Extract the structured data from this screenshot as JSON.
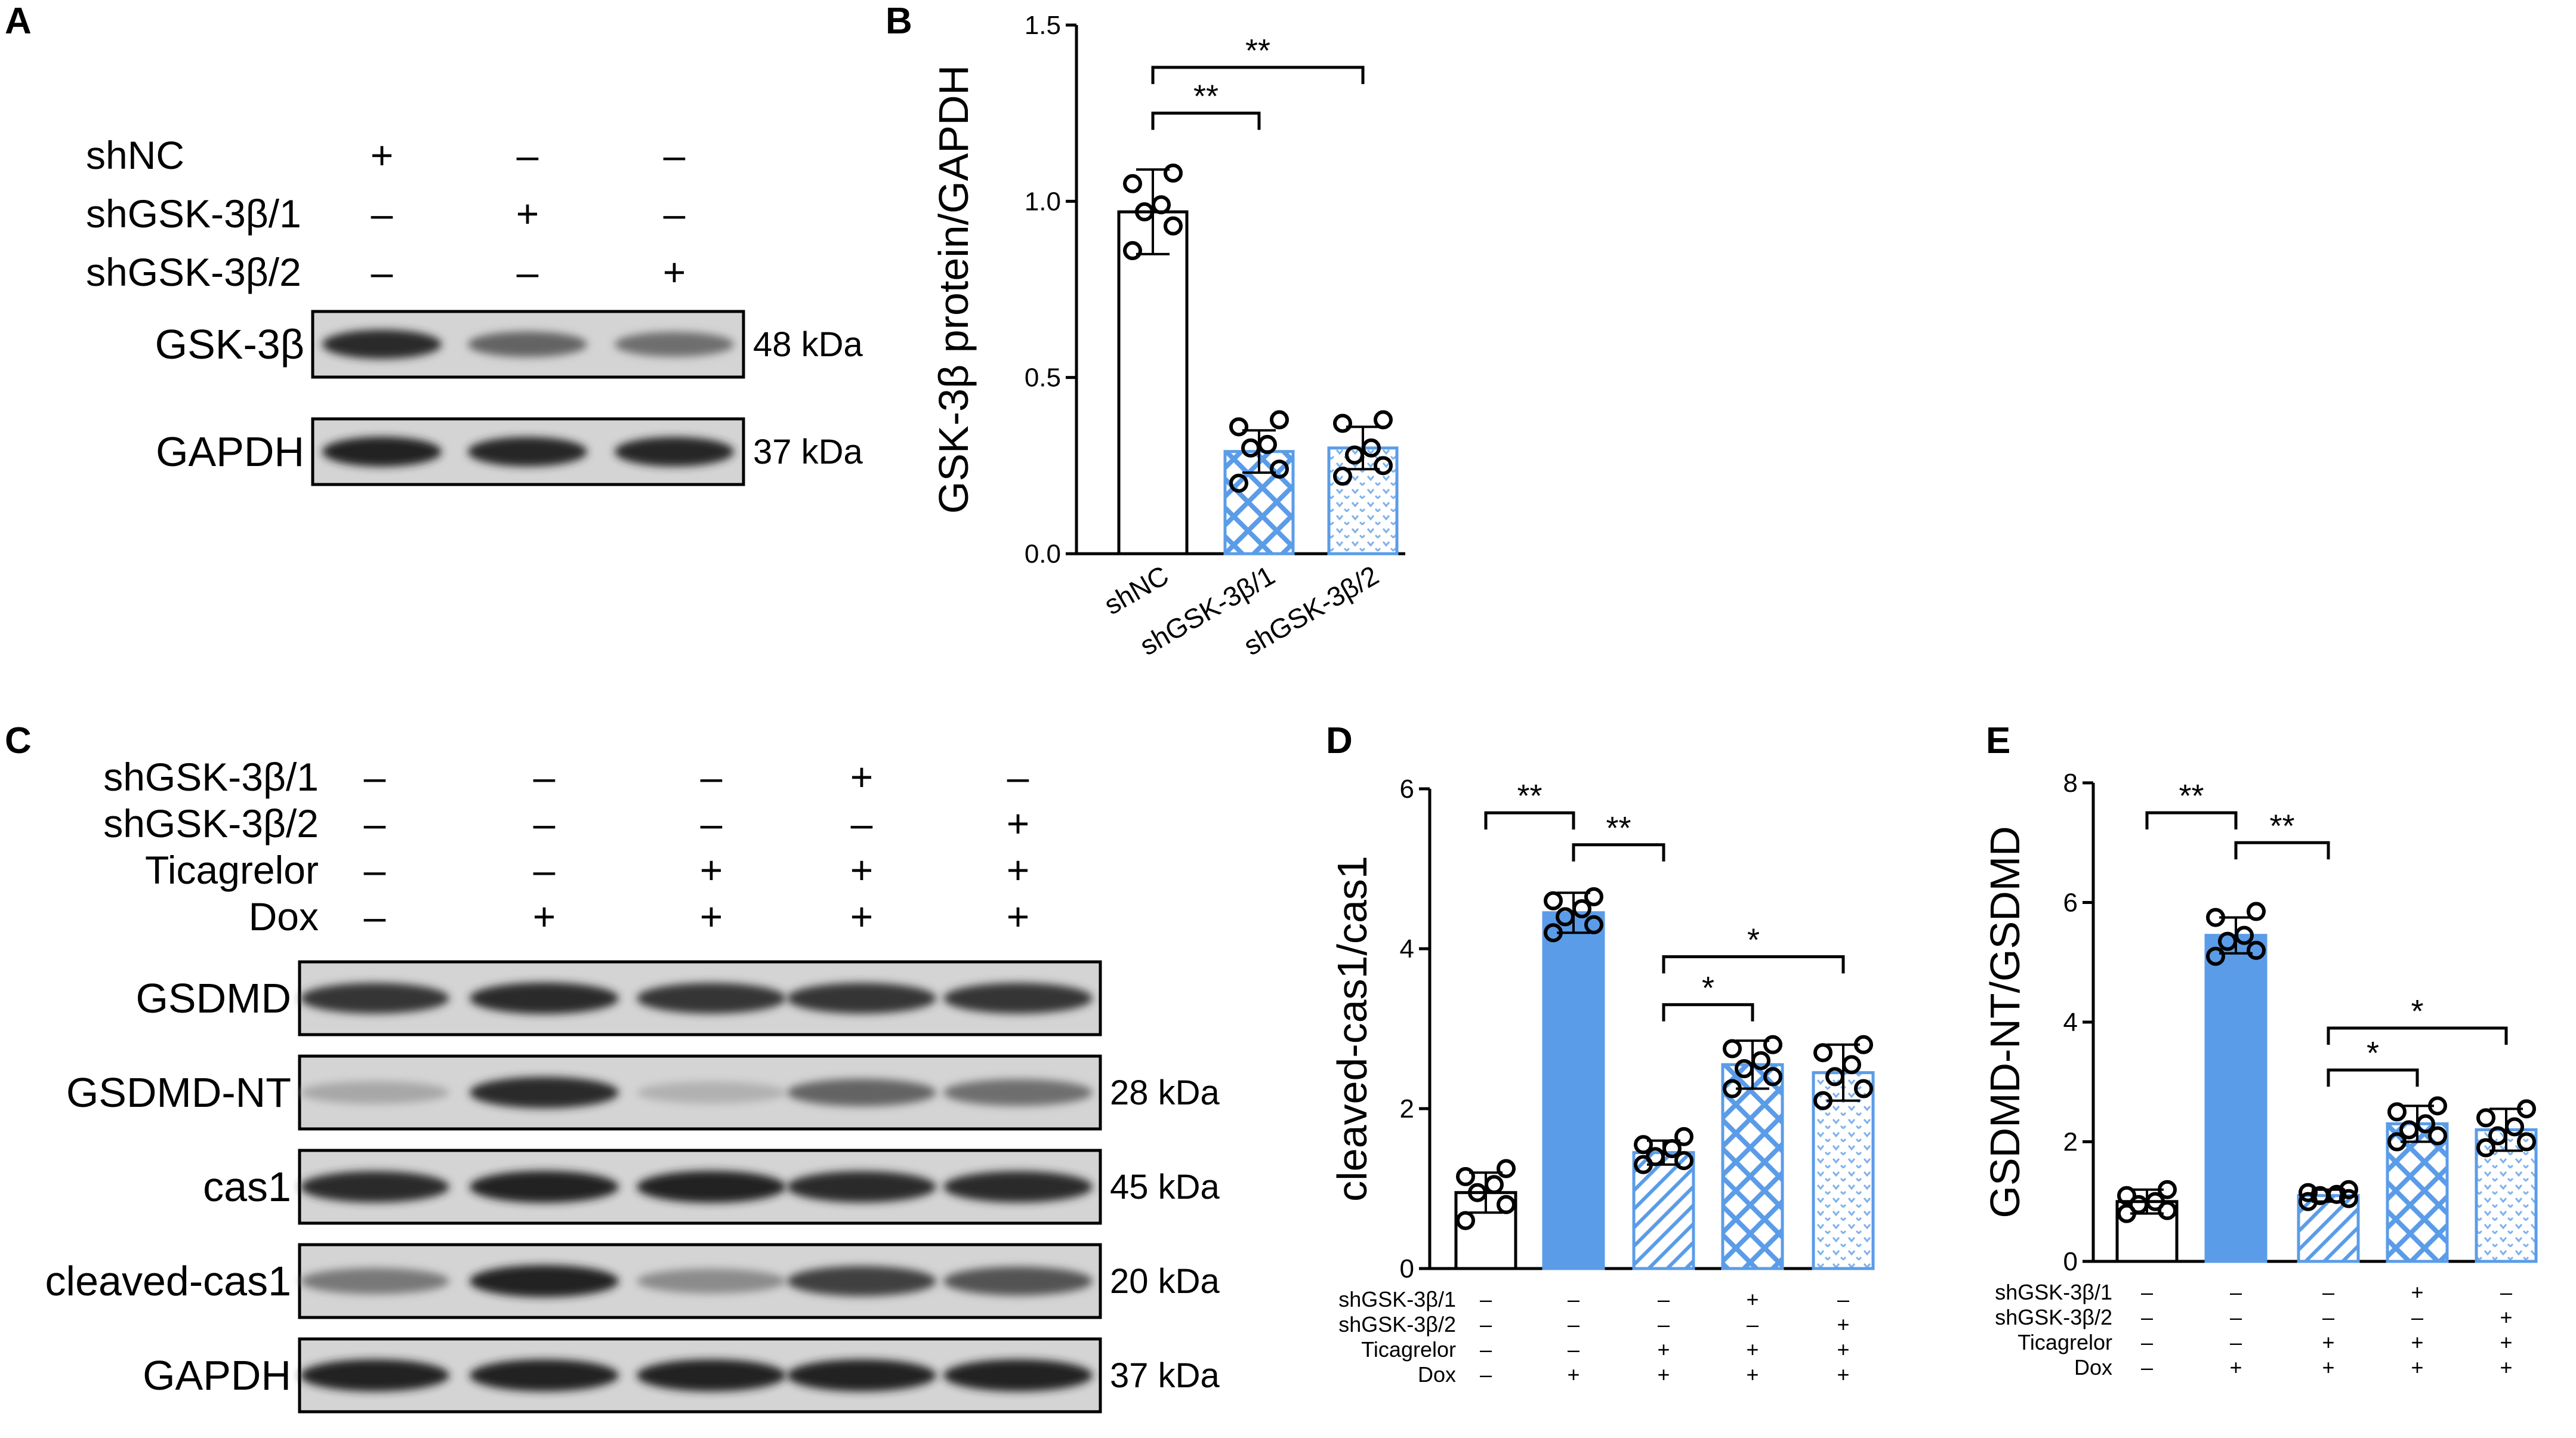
{
  "panels": [
    {
      "id": "panel-A",
      "letter": "A"
    },
    {
      "id": "panel-B",
      "letter": "B"
    },
    {
      "id": "panel-C",
      "letter": "C"
    },
    {
      "id": "panel-D",
      "letter": "D"
    },
    {
      "id": "panel-E",
      "letter": "E"
    }
  ],
  "blot_A": {
    "conditions": [
      {
        "label": "shNC",
        "signs": [
          "+",
          "–",
          "–"
        ]
      },
      {
        "label": "shGSK-3β/1",
        "signs": [
          "–",
          "+",
          "–"
        ]
      },
      {
        "label": "shGSK-3β/2",
        "signs": [
          "–",
          "–",
          "+"
        ]
      }
    ],
    "bands": [
      {
        "protein": "GSK-3β",
        "kda": "48 kDa",
        "intensity": [
          0.85,
          0.55,
          0.5
        ]
      },
      {
        "protein": "GAPDH",
        "kda": "37 kDa",
        "intensity": [
          0.9,
          0.88,
          0.88
        ]
      }
    ]
  },
  "blot_C": {
    "conditions": [
      {
        "label": "shGSK-3β/1",
        "signs": [
          "–",
          "–",
          "–",
          "+",
          "–"
        ]
      },
      {
        "label": "shGSK-3β/2",
        "signs": [
          "–",
          "–",
          "–",
          "–",
          "+"
        ]
      },
      {
        "label": "Ticagrelor",
        "signs": [
          "–",
          "–",
          "+",
          "+",
          "+"
        ]
      },
      {
        "label": "Dox",
        "signs": [
          "–",
          "+",
          "+",
          "+",
          "+"
        ]
      }
    ],
    "bands": [
      {
        "protein": "GSDMD",
        "kda": "",
        "intensity": [
          0.8,
          0.85,
          0.8,
          0.8,
          0.8
        ]
      },
      {
        "protein": "GSDMD-NT",
        "kda": "28 kDa",
        "intensity": [
          0.2,
          0.85,
          0.15,
          0.55,
          0.5
        ]
      },
      {
        "protein": "cas1",
        "kda": "45 kDa",
        "intensity": [
          0.85,
          0.9,
          0.9,
          0.85,
          0.85
        ]
      },
      {
        "protein": "cleaved-cas1",
        "kda": "20 kDa",
        "intensity": [
          0.45,
          0.9,
          0.35,
          0.75,
          0.65
        ]
      },
      {
        "protein": "GAPDH",
        "kda": "37 kDa",
        "intensity": [
          0.9,
          0.9,
          0.9,
          0.9,
          0.9
        ]
      }
    ]
  },
  "colors": {
    "bar_blue": "#5b9ce8",
    "light_blue": "#a9c9ef",
    "pattern_blue": "#5b9ce8",
    "black": "#000000"
  },
  "chart_data": [
    {
      "type": "bar",
      "panel": "B",
      "categories": [
        "shNC",
        "shGSK-3β/1",
        "shGSK-3β/2"
      ],
      "values": [
        0.97,
        0.29,
        0.3
      ],
      "errors": [
        0.12,
        0.06,
        0.06
      ],
      "points": [
        [
          0.86,
          0.93,
          0.97,
          0.99,
          1.05,
          1.08
        ],
        [
          0.2,
          0.24,
          0.3,
          0.31,
          0.36,
          0.38
        ],
        [
          0.22,
          0.25,
          0.28,
          0.3,
          0.37,
          0.38
        ]
      ],
      "fills": [
        "white",
        "crosshatch",
        "dots"
      ],
      "ylabel": "GSK-3β protein/GAPDH",
      "ylim": [
        0,
        1.5
      ],
      "yticks": [
        "0.0",
        "0.5",
        "1.0",
        "1.5"
      ],
      "brackets": [
        {
          "from": 0,
          "to": 1,
          "level": 1.25,
          "label": "**"
        },
        {
          "from": 0,
          "to": 2,
          "level": 1.38,
          "label": "**"
        }
      ]
    },
    {
      "type": "bar",
      "panel": "D",
      "categories": [
        "1",
        "2",
        "3",
        "4",
        "5"
      ],
      "values": [
        0.95,
        4.45,
        1.45,
        2.55,
        2.45
      ],
      "errors": [
        0.25,
        0.25,
        0.15,
        0.3,
        0.35
      ],
      "points": [
        [
          0.6,
          0.8,
          0.95,
          1.05,
          1.15,
          1.25
        ],
        [
          4.2,
          4.3,
          4.4,
          4.5,
          4.6,
          4.65
        ],
        [
          1.3,
          1.35,
          1.4,
          1.5,
          1.55,
          1.65
        ],
        [
          2.25,
          2.4,
          2.5,
          2.6,
          2.75,
          2.8
        ],
        [
          2.1,
          2.25,
          2.4,
          2.55,
          2.7,
          2.8
        ]
      ],
      "fills": [
        "white",
        "solid",
        "diagonal",
        "crosshatch",
        "dots"
      ],
      "ylabel": "cleaved-cas1/cas1",
      "ylim": [
        0,
        6
      ],
      "yticks": [
        "0",
        "2",
        "4",
        "6"
      ],
      "brackets": [
        {
          "from": 0,
          "to": 1,
          "level": 5.7,
          "label": "**"
        },
        {
          "from": 1,
          "to": 2,
          "level": 5.3,
          "label": "**"
        },
        {
          "from": 2,
          "to": 3,
          "level": 3.3,
          "label": "*"
        },
        {
          "from": 2,
          "to": 4,
          "level": 3.9,
          "label": "*"
        }
      ],
      "conditions": [
        {
          "label": "shGSK-3β/1",
          "signs": [
            "–",
            "–",
            "–",
            "+",
            "–"
          ]
        },
        {
          "label": "shGSK-3β/2",
          "signs": [
            "–",
            "–",
            "–",
            "–",
            "+"
          ]
        },
        {
          "label": "Ticagrelor",
          "signs": [
            "–",
            "–",
            "+",
            "+",
            "+"
          ]
        },
        {
          "label": "Dox",
          "signs": [
            "–",
            "+",
            "+",
            "+",
            "+"
          ]
        }
      ]
    },
    {
      "type": "bar",
      "panel": "E",
      "categories": [
        "1",
        "2",
        "3",
        "4",
        "5"
      ],
      "values": [
        1.0,
        5.45,
        1.1,
        2.3,
        2.2
      ],
      "errors": [
        0.2,
        0.3,
        0.1,
        0.3,
        0.35
      ],
      "points": [
        [
          0.8,
          0.85,
          0.95,
          1.0,
          1.1,
          1.2
        ],
        [
          5.1,
          5.2,
          5.35,
          5.45,
          5.75,
          5.85
        ],
        [
          1.0,
          1.05,
          1.1,
          1.12,
          1.15,
          1.2
        ],
        [
          2.0,
          2.1,
          2.2,
          2.3,
          2.5,
          2.6
        ],
        [
          1.9,
          2.0,
          2.1,
          2.25,
          2.4,
          2.55
        ]
      ],
      "fills": [
        "white",
        "solid",
        "diagonal",
        "crosshatch",
        "dots"
      ],
      "ylabel": "GSDMD-NT/GSDMD",
      "ylim": [
        0,
        8
      ],
      "yticks": [
        "0",
        "2",
        "4",
        "6",
        "8"
      ],
      "brackets": [
        {
          "from": 0,
          "to": 1,
          "level": 7.5,
          "label": "**"
        },
        {
          "from": 1,
          "to": 2,
          "level": 7.0,
          "label": "**"
        },
        {
          "from": 2,
          "to": 3,
          "level": 3.2,
          "label": "*"
        },
        {
          "from": 2,
          "to": 4,
          "level": 3.9,
          "label": "*"
        }
      ],
      "conditions": [
        {
          "label": "shGSK-3β/1",
          "signs": [
            "–",
            "–",
            "–",
            "+",
            "–"
          ]
        },
        {
          "label": "shGSK-3β/2",
          "signs": [
            "–",
            "–",
            "–",
            "–",
            "+"
          ]
        },
        {
          "label": "Ticagrelor",
          "signs": [
            "–",
            "–",
            "+",
            "+",
            "+"
          ]
        },
        {
          "label": "Dox",
          "signs": [
            "–",
            "+",
            "+",
            "+",
            "+"
          ]
        }
      ]
    }
  ]
}
